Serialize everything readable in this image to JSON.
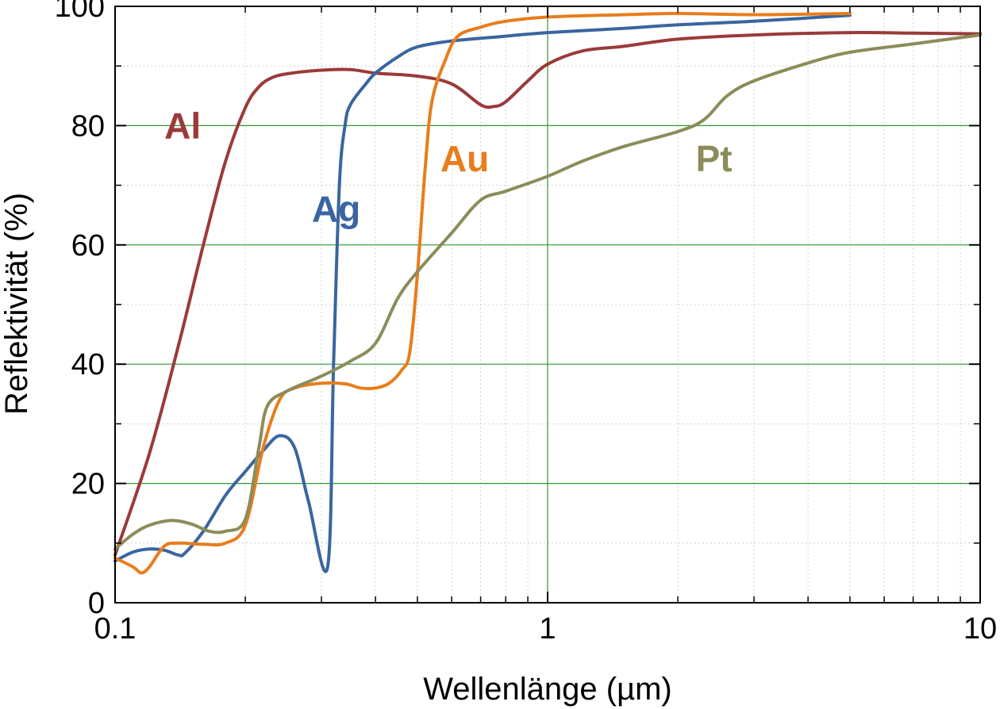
{
  "chart_data": {
    "type": "line",
    "xlabel": "Wellenlänge (µm)",
    "ylabel": "Reflektivität (%)",
    "xscale": "log",
    "xlim": [
      0.1,
      10
    ],
    "ylim": [
      0,
      100
    ],
    "grid": true,
    "legend": "inline labels",
    "x_ticks": [
      {
        "value": 0.1,
        "label": "0.1"
      },
      {
        "value": 1,
        "label": "1"
      },
      {
        "value": 10,
        "label": "10"
      }
    ],
    "y_ticks": [
      {
        "value": 0,
        "label": "0"
      },
      {
        "value": 20,
        "label": "20"
      },
      {
        "value": 40,
        "label": "40"
      },
      {
        "value": 60,
        "label": "60"
      },
      {
        "value": 80,
        "label": "80"
      },
      {
        "value": 100,
        "label": "100"
      }
    ],
    "series": [
      {
        "name": "Al",
        "color": "#9b3a3a",
        "label_at": [
          0.13,
          80
        ],
        "points": [
          [
            0.1,
            8
          ],
          [
            0.12,
            25
          ],
          [
            0.14,
            43
          ],
          [
            0.16,
            60
          ],
          [
            0.18,
            74
          ],
          [
            0.2,
            83
          ],
          [
            0.215,
            86.5
          ],
          [
            0.23,
            88
          ],
          [
            0.25,
            88.7
          ],
          [
            0.3,
            89.3
          ],
          [
            0.35,
            89.4
          ],
          [
            0.4,
            88.8
          ],
          [
            0.5,
            88.3
          ],
          [
            0.6,
            87
          ],
          [
            0.7,
            83.5
          ],
          [
            0.75,
            83.2
          ],
          [
            0.8,
            84
          ],
          [
            0.9,
            87.5
          ],
          [
            1,
            90.3
          ],
          [
            1.2,
            92.5
          ],
          [
            1.5,
            93.3
          ],
          [
            2,
            94.5
          ],
          [
            3,
            95.2
          ],
          [
            5,
            95.6
          ],
          [
            7,
            95.5
          ],
          [
            10,
            95.4
          ]
        ]
      },
      {
        "name": "Ag",
        "color": "#3a65a0",
        "label_at": [
          0.285,
          66
        ],
        "points": [
          [
            0.1,
            7
          ],
          [
            0.11,
            8.5
          ],
          [
            0.12,
            9
          ],
          [
            0.13,
            8.8
          ],
          [
            0.14,
            8
          ],
          [
            0.145,
            8.3
          ],
          [
            0.16,
            12
          ],
          [
            0.18,
            18
          ],
          [
            0.2,
            22
          ],
          [
            0.22,
            25.5
          ],
          [
            0.24,
            28
          ],
          [
            0.26,
            26
          ],
          [
            0.28,
            17
          ],
          [
            0.31,
            6
          ],
          [
            0.32,
            40
          ],
          [
            0.33,
            70
          ],
          [
            0.34,
            80
          ],
          [
            0.35,
            83.5
          ],
          [
            0.38,
            87
          ],
          [
            0.4,
            88.8
          ],
          [
            0.45,
            91.5
          ],
          [
            0.5,
            93.2
          ],
          [
            0.6,
            94.2
          ],
          [
            0.8,
            95
          ],
          [
            1,
            95.6
          ],
          [
            1.5,
            96.3
          ],
          [
            2,
            96.9
          ],
          [
            3,
            97.5
          ],
          [
            5,
            98.5
          ]
        ]
      },
      {
        "name": "Au",
        "color": "#e87d1c",
        "label_at": [
          0.565,
          74.5
        ],
        "points": [
          [
            0.1,
            7.5
          ],
          [
            0.11,
            6
          ],
          [
            0.115,
            5
          ],
          [
            0.12,
            6
          ],
          [
            0.13,
            9.5
          ],
          [
            0.14,
            10
          ],
          [
            0.16,
            9.8
          ],
          [
            0.18,
            10
          ],
          [
            0.2,
            13
          ],
          [
            0.22,
            26
          ],
          [
            0.24,
            34
          ],
          [
            0.26,
            36
          ],
          [
            0.3,
            36.8
          ],
          [
            0.34,
            36.7
          ],
          [
            0.37,
            36
          ],
          [
            0.4,
            36
          ],
          [
            0.43,
            36.8
          ],
          [
            0.46,
            39
          ],
          [
            0.48,
            42
          ],
          [
            0.5,
            55
          ],
          [
            0.52,
            72
          ],
          [
            0.54,
            84
          ],
          [
            0.58,
            91
          ],
          [
            0.62,
            95
          ],
          [
            0.7,
            96.5
          ],
          [
            0.8,
            97.5
          ],
          [
            1,
            98.2
          ],
          [
            1.5,
            98.6
          ],
          [
            2,
            98.8
          ],
          [
            3,
            98.6
          ],
          [
            5,
            98.8
          ]
        ]
      },
      {
        "name": "Pt",
        "color": "#8c8c5a",
        "label_at": [
          2.2,
          74.5
        ],
        "points": [
          [
            0.1,
            9
          ],
          [
            0.11,
            11.5
          ],
          [
            0.12,
            13
          ],
          [
            0.135,
            13.8
          ],
          [
            0.15,
            13.2
          ],
          [
            0.165,
            12
          ],
          [
            0.18,
            12
          ],
          [
            0.2,
            14
          ],
          [
            0.215,
            26
          ],
          [
            0.225,
            33
          ],
          [
            0.25,
            35.5
          ],
          [
            0.3,
            38
          ],
          [
            0.35,
            40.5
          ],
          [
            0.4,
            43.5
          ],
          [
            0.45,
            51
          ],
          [
            0.5,
            55.5
          ],
          [
            0.6,
            62
          ],
          [
            0.7,
            67.5
          ],
          [
            0.8,
            69
          ],
          [
            1,
            71.5
          ],
          [
            1.2,
            74
          ],
          [
            1.5,
            76.5
          ],
          [
            2,
            79
          ],
          [
            2.3,
            81
          ],
          [
            2.6,
            85
          ],
          [
            3,
            87.5
          ],
          [
            4,
            90.5
          ],
          [
            5,
            92.3
          ],
          [
            7,
            93.7
          ],
          [
            10,
            95.2
          ]
        ]
      }
    ]
  }
}
